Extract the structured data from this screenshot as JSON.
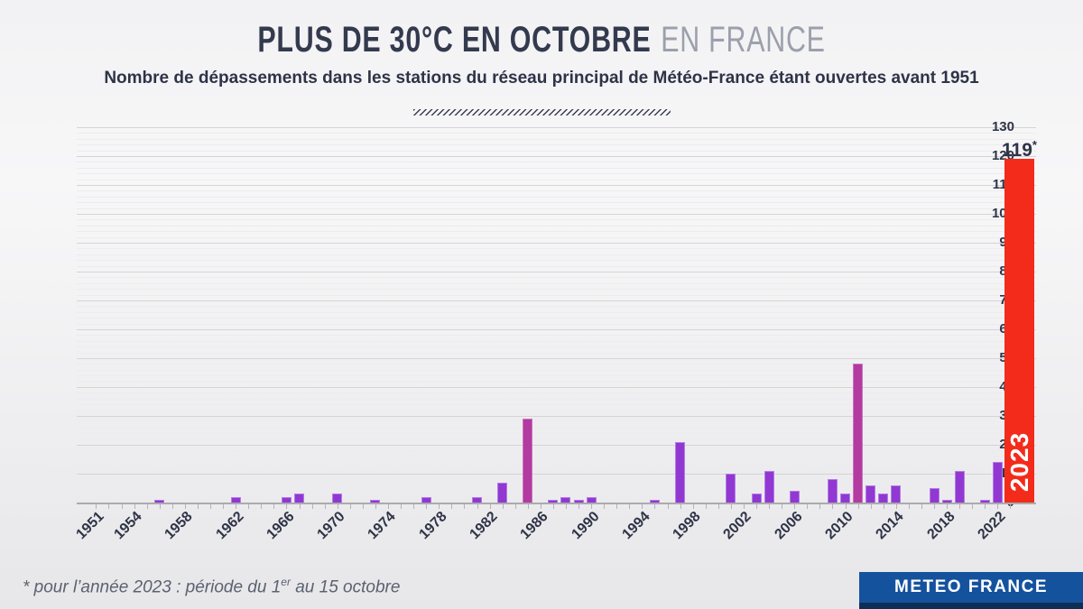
{
  "header": {
    "title_main": "PLUS DE 30°C EN OCTOBRE",
    "title_light": "EN FRANCE",
    "subtitle": "Nombre de dépassements dans les stations du réseau principal de Météo-France étant ouvertes avant 1951"
  },
  "footer": {
    "note_prefix": "* pour l’année 2023 : période du 1",
    "note_sup": "er",
    "note_suffix": " au 15 octobre",
    "logo_text": "METEO FRANCE"
  },
  "chart_data": {
    "type": "bar",
    "title": "Plus de 30°C en octobre en France",
    "ylabel": "",
    "xlabel": "",
    "ylim": [
      0,
      130
    ],
    "y_major_step": 10,
    "y_minor_step": 2,
    "x_range": [
      1951,
      2023
    ],
    "x_tick_labels": [
      "1951",
      "1954",
      "1958",
      "1962",
      "1966",
      "1970",
      "1974",
      "1978",
      "1982",
      "1986",
      "1990",
      "1994",
      "1998",
      "2002",
      "2006",
      "2010",
      "2014",
      "2018",
      "2022"
    ],
    "default_value": 0,
    "values_by_year": {
      "1956": 1,
      "1962": 2,
      "1966": 2,
      "1967": 3,
      "1970": 3,
      "1973": 1,
      "1977": 2,
      "1981": 2,
      "1983": 7,
      "1985": 29,
      "1987": 1,
      "1988": 2,
      "1989": 1,
      "1990": 2,
      "1995": 1,
      "1997": 21,
      "2001": 10,
      "2003": 3,
      "2004": 11,
      "2006": 4,
      "2009": 8,
      "2010": 3,
      "2011": 48,
      "2012": 6,
      "2013": 3,
      "2014": 6,
      "2017": 5,
      "2018": 1,
      "2019": 11,
      "2021": 1,
      "2022": 14,
      "2023": 119
    },
    "highlight_years": [
      1985,
      2011
    ],
    "record_year": 2023,
    "record_label": "119",
    "record_label_sup": "*",
    "record_bar_text": "2023",
    "legend": "none",
    "grid": "horizontal",
    "colors": {
      "bar": "#9138d2",
      "bar_border": "#b47ce6",
      "highlight": "#b23aa0",
      "highlight_border": "#ca74bf",
      "record": "#f32b1b",
      "axis_text": "#2f3447",
      "grid_major": "#d4d4d7",
      "grid_minor": "#ececee",
      "logo_blue": "#15529e",
      "logo_navy": "#0d2f57"
    }
  }
}
